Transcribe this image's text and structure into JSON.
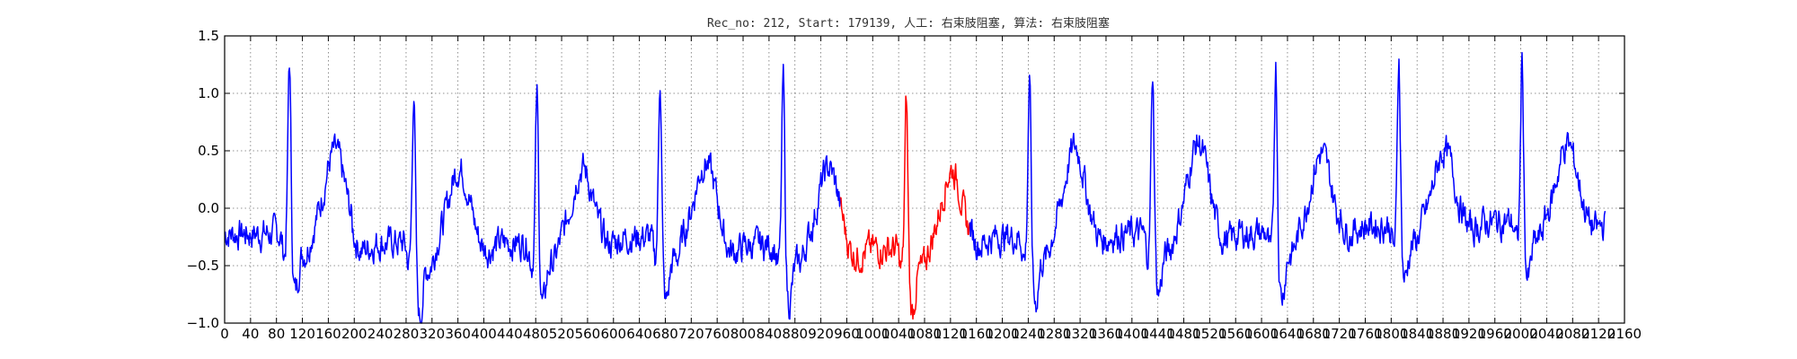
{
  "chart_data": {
    "type": "line",
    "title": "Rec_no: 212, Start: 179139, 人工: 右束肢阻塞, 算法: 右束肢阻塞",
    "xlabel": "",
    "ylabel": "",
    "xlim": [
      0,
      2160
    ],
    "ylim": [
      -1.0,
      1.5
    ],
    "grid": true,
    "yticks": [
      -1.0,
      -0.5,
      0.0,
      0.5,
      1.0,
      1.5
    ],
    "ytick_labels": [
      "−1.0",
      "−0.5",
      "0.0",
      "0.5",
      "1.0",
      "1.5"
    ],
    "xticks": [
      0,
      40,
      80,
      120,
      160,
      200,
      240,
      280,
      320,
      360,
      400,
      440,
      480,
      520,
      560,
      600,
      640,
      680,
      720,
      760,
      800,
      840,
      880,
      920,
      960,
      1000,
      1040,
      1080,
      1120,
      1160,
      1200,
      1240,
      1280,
      1320,
      1360,
      1400,
      1440,
      1480,
      1520,
      1560,
      1600,
      1640,
      1680,
      1720,
      1760,
      1800,
      1840,
      1880,
      1920,
      1960,
      2000,
      2040,
      2080,
      2120,
      2160
    ],
    "colors": {
      "normal": "#0000ff",
      "highlight": "#ff0000"
    },
    "beats": [
      {
        "rpeak": 100,
        "rmax": 1.38,
        "smin": -0.7,
        "tpeak": 0.44,
        "base": -0.22
      },
      {
        "rpeak": 292,
        "rmax": 1.15,
        "smin": -0.92,
        "tpeak": 0.3,
        "base": -0.3
      },
      {
        "rpeak": 482,
        "rmax": 1.08,
        "smin": -0.82,
        "tpeak": 0.3,
        "base": -0.3
      },
      {
        "rpeak": 672,
        "rmax": 1.26,
        "smin": -0.8,
        "tpeak": 0.35,
        "base": -0.25
      },
      {
        "rpeak": 862,
        "rmax": 1.22,
        "smin": -0.8,
        "tpeak": 0.3,
        "base": -0.32
      },
      {
        "rpeak": 1052,
        "rmax": 1.05,
        "smin": -0.88,
        "tpeak": 0.28,
        "base": -0.35
      },
      {
        "rpeak": 1242,
        "rmax": 1.22,
        "smin": -0.8,
        "tpeak": 0.48,
        "base": -0.25
      },
      {
        "rpeak": 1432,
        "rmax": 1.28,
        "smin": -0.72,
        "tpeak": 0.52,
        "base": -0.22
      },
      {
        "rpeak": 1622,
        "rmax": 1.37,
        "smin": -0.75,
        "tpeak": 0.42,
        "base": -0.22
      },
      {
        "rpeak": 1812,
        "rmax": 1.4,
        "smin": -0.6,
        "tpeak": 0.45,
        "base": -0.15
      },
      {
        "rpeak": 2002,
        "rmax": 1.36,
        "smin": -0.6,
        "tpeak": 0.5,
        "base": -0.12
      }
    ],
    "x_end": 2130,
    "highlight_range": [
      950,
      1150
    ],
    "series": [
      {
        "segment": "before",
        "x_range": [
          0,
          950
        ]
      },
      {
        "segment": "highlight",
        "x_range": [
          950,
          1150
        ]
      },
      {
        "segment": "after",
        "x_range": [
          1150,
          2130
        ]
      }
    ]
  }
}
